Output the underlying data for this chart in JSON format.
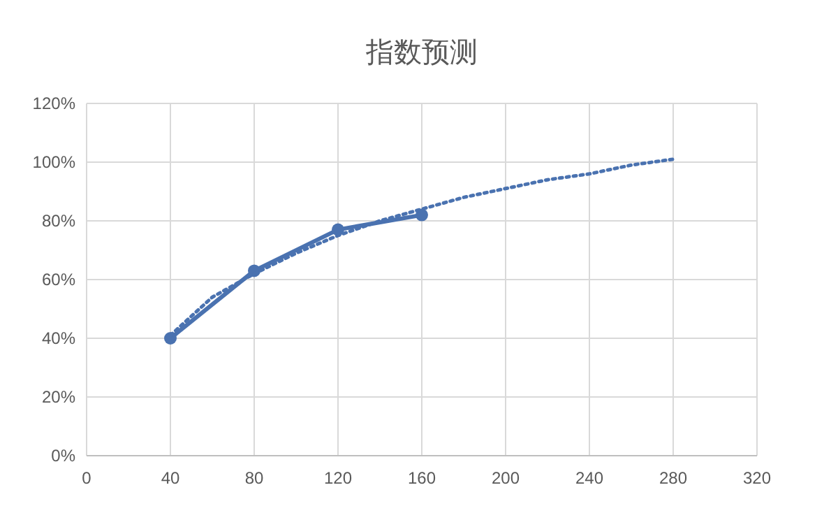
{
  "chart_data": {
    "type": "line",
    "title": "指数预测",
    "xlim": [
      0,
      320
    ],
    "xticks": [
      0,
      40,
      80,
      120,
      160,
      200,
      240,
      280,
      320
    ],
    "ylim": [
      0,
      120
    ],
    "yticks": [
      {
        "value": 0,
        "label": "0%"
      },
      {
        "value": 20,
        "label": "20%"
      },
      {
        "value": 40,
        "label": "40%"
      },
      {
        "value": 60,
        "label": "60%"
      },
      {
        "value": 80,
        "label": "80%"
      },
      {
        "value": 100,
        "label": "100%"
      },
      {
        "value": 120,
        "label": "120%"
      }
    ],
    "grid": true,
    "series": [
      {
        "color": "#4a72b0",
        "marker": "circle",
        "line_style": "solid",
        "x": [
          40,
          80,
          120,
          160
        ],
        "values": [
          40,
          63,
          77,
          82
        ]
      },
      {
        "color": "#4a72b0",
        "marker": "none",
        "line_style": "dotted",
        "x": [
          40,
          60,
          80,
          100,
          120,
          140,
          160,
          180,
          200,
          220,
          240,
          260,
          280
        ],
        "values": [
          41,
          54,
          62,
          69,
          75,
          80,
          84,
          88,
          91,
          94,
          96,
          99,
          101
        ]
      }
    ]
  }
}
